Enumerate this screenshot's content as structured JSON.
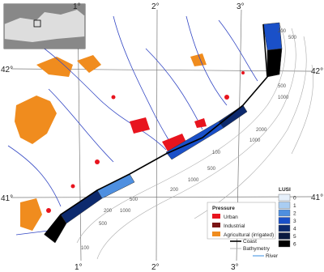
{
  "graticule": {
    "longitudes": [
      "1°",
      "2°",
      "3°"
    ],
    "latitudes": [
      "42°",
      "41°"
    ]
  },
  "bathymetry_labels": [
    "200",
    "500",
    "500",
    "1000",
    "2000",
    "1000",
    "100",
    "500",
    "1000",
    "200",
    "500",
    "1000",
    "200",
    "500",
    "100"
  ],
  "pressure_legend": {
    "title": "Pressure",
    "items": [
      "Urban",
      "Industrial",
      "Agricultural (irrigated)"
    ]
  },
  "line_legend": [
    "Coast",
    "Bathymetry",
    "River"
  ],
  "lusi_legend": {
    "title": "LUSI",
    "levels": [
      "0",
      "1",
      "2",
      "3",
      "4",
      "5",
      "6"
    ]
  }
}
